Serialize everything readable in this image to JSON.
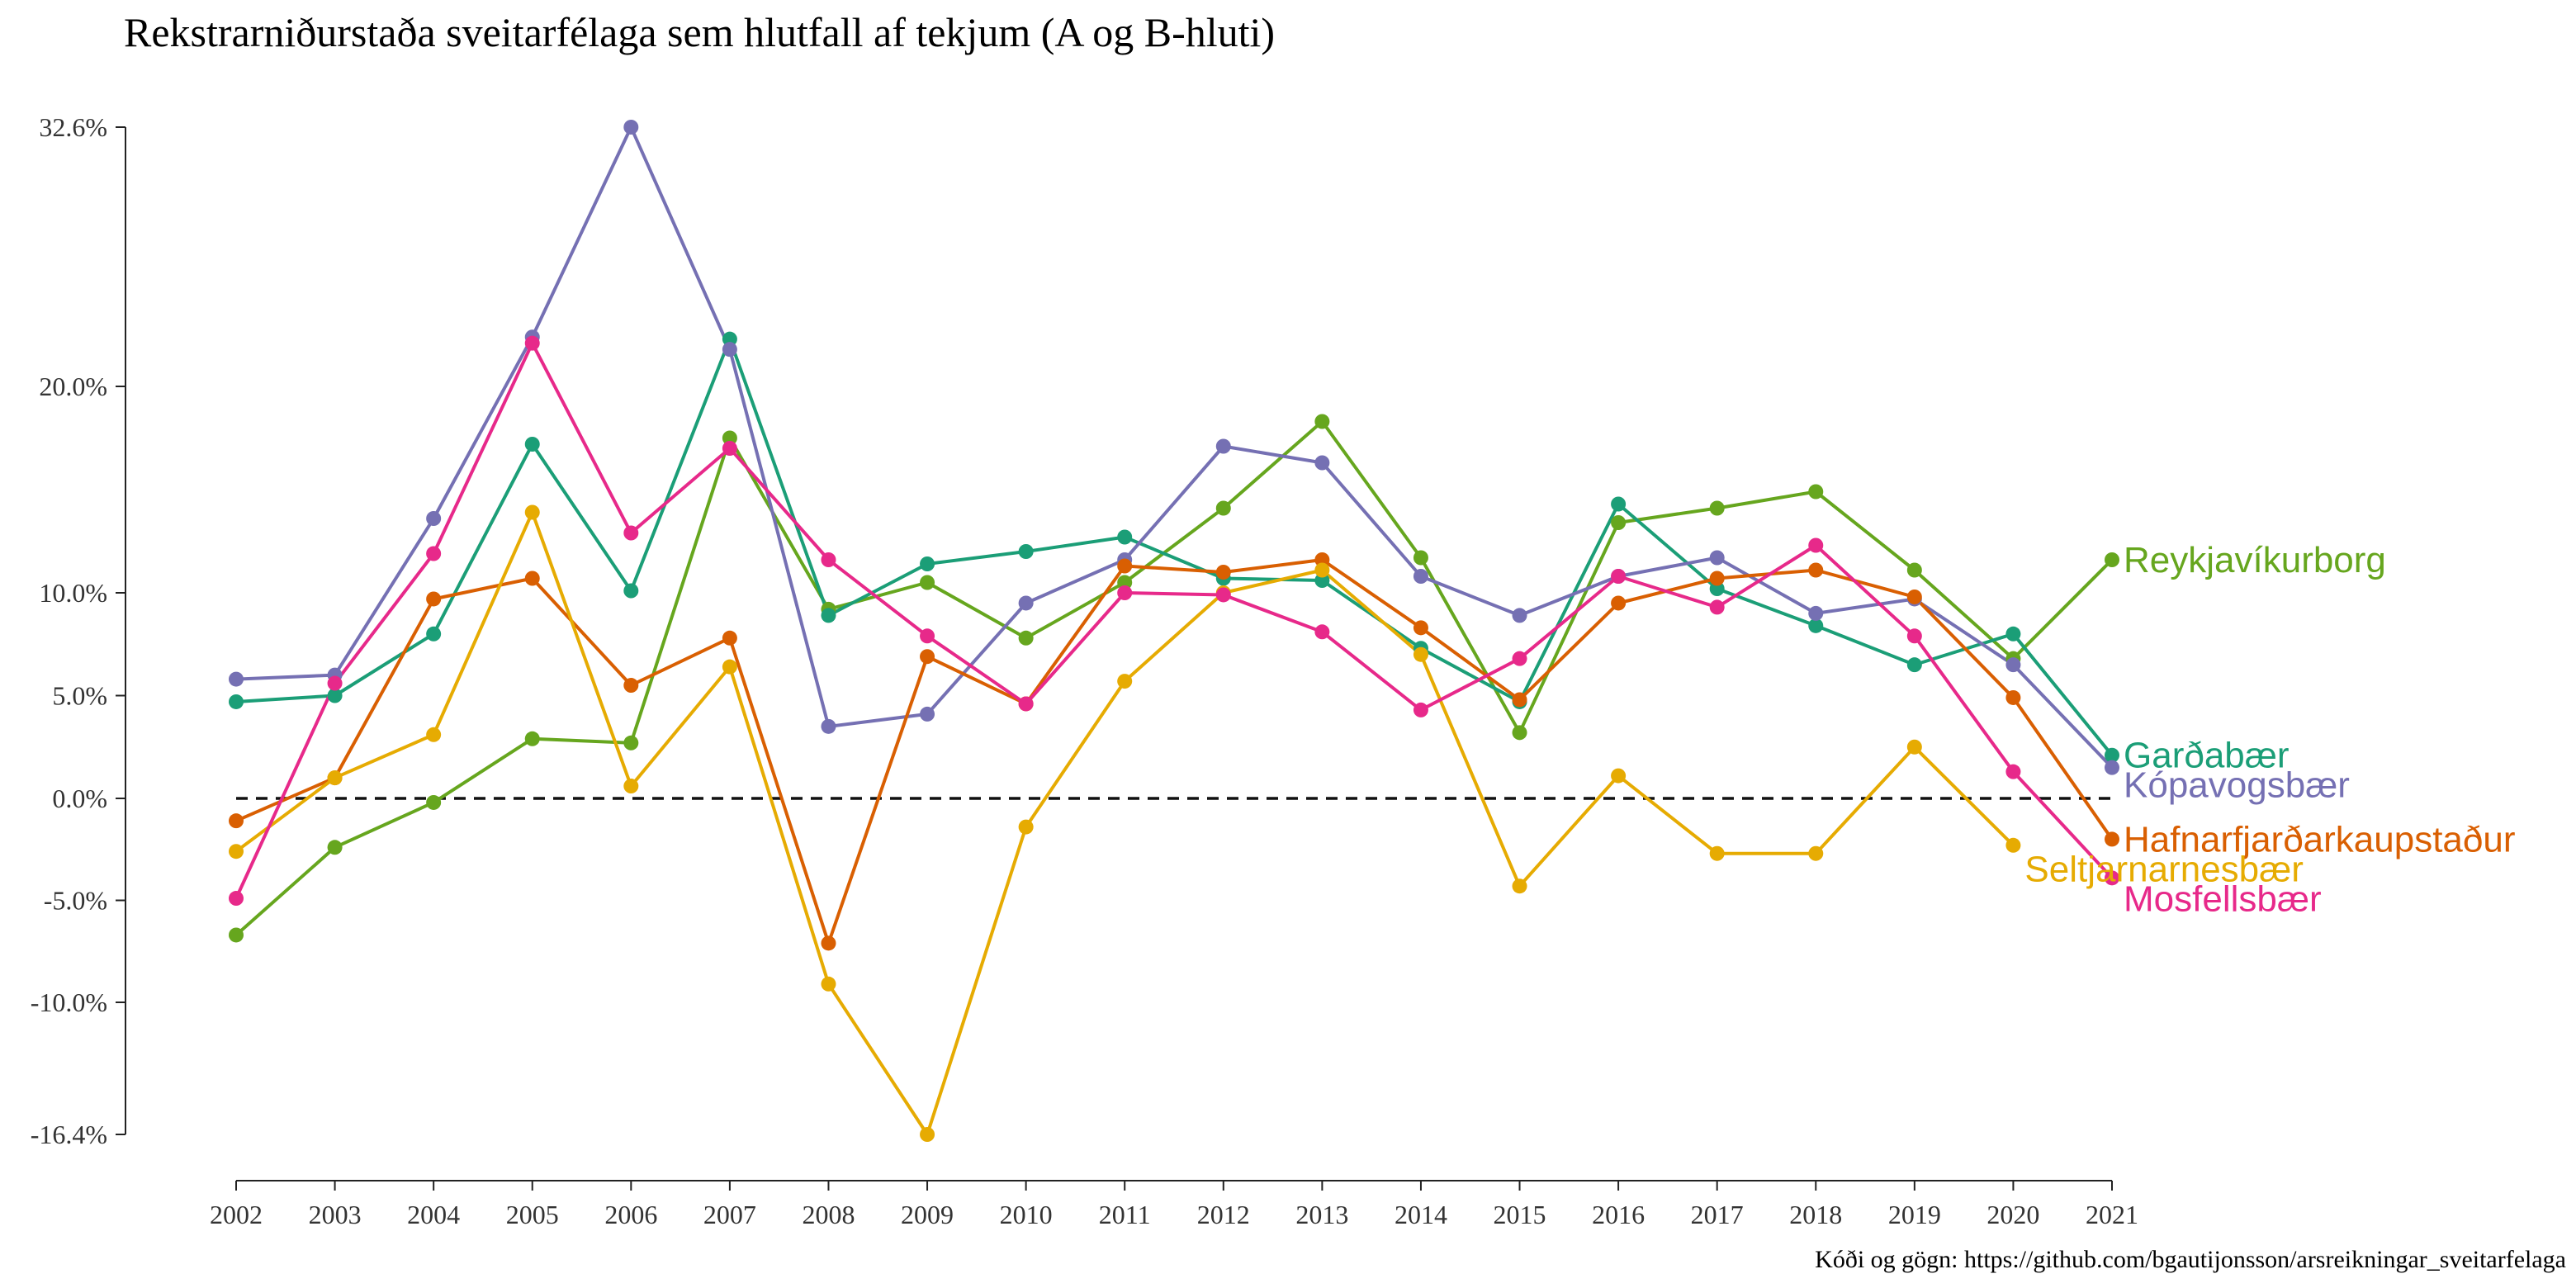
{
  "chart_data": {
    "type": "line",
    "title": "Rekstrarniðurstaða sveitarfélaga sem hlutfall af tekjum (A og B-hluti)",
    "caption": "Kóði og gögn: https://github.com/bgautijonsson/arsreikningar_sveitarfelaga",
    "xlabel": "",
    "ylabel": "",
    "x": [
      2002,
      2003,
      2004,
      2005,
      2006,
      2007,
      2008,
      2009,
      2010,
      2011,
      2012,
      2013,
      2014,
      2015,
      2016,
      2017,
      2018,
      2019,
      2020,
      2021
    ],
    "ylim": [
      -16.4,
      32.6
    ],
    "y_ticks": [
      {
        "value": 32.6,
        "label": "32.6%"
      },
      {
        "value": 20.0,
        "label": "20.0%"
      },
      {
        "value": 10.0,
        "label": "10.0%"
      },
      {
        "value": 5.0,
        "label": "5.0%"
      },
      {
        "value": 0.0,
        "label": "0.0%"
      },
      {
        "value": -5.0,
        "label": "-5.0%"
      },
      {
        "value": -10.0,
        "label": "-10.0%"
      },
      {
        "value": -16.4,
        "label": "-16.4%"
      }
    ],
    "y_axis_scale": "compressed above 10%",
    "y_scale_breaks": [
      [
        -16.4,
        -10.0
      ],
      [
        20.0,
        32.6
      ]
    ],
    "zero_line": "dashed",
    "grid": false,
    "legend": "direct labels at line ends",
    "series": [
      {
        "name": "Reykjavíkurborg",
        "color": "#66a61e",
        "values": [
          -6.7,
          -2.4,
          -0.2,
          2.9,
          2.7,
          17.5,
          9.2,
          10.5,
          7.8,
          10.5,
          14.1,
          18.3,
          11.7,
          3.2,
          13.4,
          14.1,
          14.9,
          11.1,
          6.8,
          11.6
        ]
      },
      {
        "name": "Garðabær",
        "color": "#1b9e77",
        "values": [
          4.7,
          5.0,
          8.0,
          17.2,
          10.1,
          22.3,
          8.9,
          11.4,
          12.0,
          12.7,
          10.7,
          10.6,
          7.3,
          4.7,
          14.3,
          10.2,
          8.4,
          6.5,
          8.0,
          2.1
        ]
      },
      {
        "name": "Kópavogsbær",
        "color": "#7570b3",
        "values": [
          5.8,
          6.0,
          13.6,
          22.4,
          32.6,
          21.8,
          3.5,
          4.1,
          9.5,
          11.6,
          17.1,
          16.3,
          10.8,
          8.9,
          10.8,
          11.7,
          9.0,
          9.7,
          6.5,
          1.5
        ]
      },
      {
        "name": "Hafnarfjarðarkaupstaður",
        "color": "#d95f02",
        "values": [
          -1.1,
          1.0,
          9.7,
          10.7,
          5.5,
          7.8,
          -7.1,
          6.9,
          4.6,
          11.3,
          11.0,
          11.6,
          8.3,
          4.8,
          9.5,
          10.7,
          11.1,
          9.8,
          4.9,
          -2.0
        ]
      },
      {
        "name": "Seltjarnarnesbær",
        "color": "#e6ab02",
        "values": [
          -2.6,
          1.0,
          3.1,
          13.9,
          0.6,
          6.4,
          -9.1,
          -16.4,
          -1.4,
          5.7,
          10.0,
          11.1,
          7.0,
          -4.3,
          1.1,
          -2.7,
          -2.7,
          2.5,
          -2.3,
          null
        ]
      },
      {
        "name": "Mosfellsbær",
        "color": "#e7298a",
        "values": [
          -4.9,
          5.6,
          11.9,
          22.1,
          12.9,
          17.0,
          11.6,
          7.9,
          4.6,
          10.0,
          9.9,
          8.1,
          4.3,
          6.8,
          10.8,
          9.3,
          12.3,
          7.9,
          1.3,
          -3.9
        ]
      }
    ]
  }
}
